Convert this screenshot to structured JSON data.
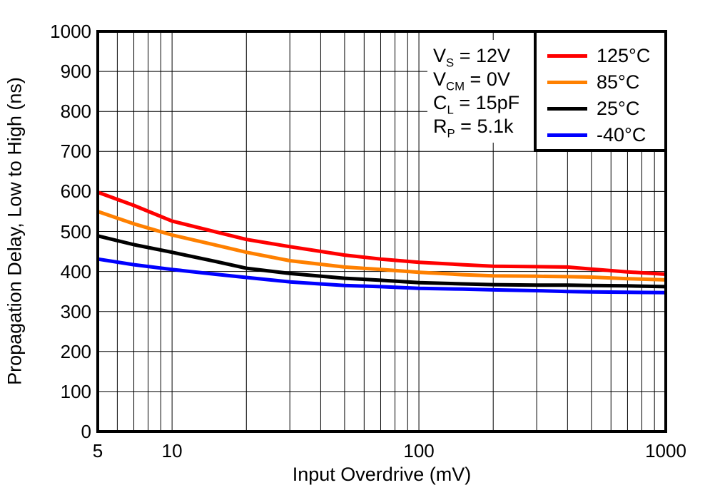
{
  "figure": {
    "background": "#ffffff",
    "frame_color": "#000000",
    "grid_color": "#000000"
  },
  "chart_data": {
    "type": "line",
    "title": "",
    "xlabel": "Input Overdrive (mV)",
    "ylabel": "Propagation Delay, Low to High (ns)",
    "x_scale": "log",
    "xlim": [
      5,
      1000
    ],
    "ylim": [
      0,
      1000
    ],
    "y_tick_interval": 100,
    "grid": true,
    "legend_position": "top-right",
    "x_ticks": [
      {
        "value": 5,
        "label": "5"
      },
      {
        "value": 10,
        "label": "10"
      },
      {
        "value": 100,
        "label": "100"
      },
      {
        "value": 1000,
        "label": "1000"
      }
    ],
    "y_ticks": [
      {
        "value": 1000,
        "label": "1000"
      },
      {
        "value": 900,
        "label": "900"
      },
      {
        "value": 800,
        "label": "800"
      },
      {
        "value": 700,
        "label": "700"
      },
      {
        "value": 600,
        "label": "600"
      },
      {
        "value": 500,
        "label": "500"
      },
      {
        "value": 400,
        "label": "400"
      },
      {
        "value": 300,
        "label": "300"
      },
      {
        "value": 200,
        "label": "200"
      },
      {
        "value": 100,
        "label": "100"
      },
      {
        "value": 0,
        "label": "0"
      }
    ],
    "conditions": [
      {
        "var": "V",
        "sub": "S",
        "rest": " = 12V"
      },
      {
        "var": "V",
        "sub": "CM",
        "rest": " = 0V"
      },
      {
        "var": "C",
        "sub": "L",
        "rest": " = 15pF"
      },
      {
        "var": "R",
        "sub": "P",
        "rest": " = 5.1k"
      }
    ],
    "x": [
      5,
      7,
      10,
      15,
      20,
      30,
      50,
      70,
      100,
      150,
      200,
      300,
      400,
      500,
      700,
      1000
    ],
    "series": [
      {
        "name": "125°C",
        "color": "#ff0000",
        "values": [
          598,
          565,
          526,
          499,
          480,
          462,
          441,
          431,
          423,
          417,
          413,
          412,
          411,
          406,
          399,
          393
        ]
      },
      {
        "name": "85°C",
        "color": "#ff8000",
        "values": [
          550,
          519,
          491,
          466,
          448,
          427,
          411,
          405,
          398,
          392,
          389,
          388,
          387,
          386,
          382,
          379
        ]
      },
      {
        "name": "25°C",
        "color": "#000000",
        "values": [
          489,
          467,
          448,
          425,
          408,
          395,
          383,
          378,
          372,
          369,
          367,
          366,
          366,
          365,
          364,
          362
        ]
      },
      {
        "name": "-40°C",
        "color": "#0000ff",
        "values": [
          431,
          417,
          405,
          393,
          385,
          374,
          365,
          362,
          358,
          356,
          354,
          352,
          350,
          349,
          348,
          347
        ]
      }
    ]
  }
}
